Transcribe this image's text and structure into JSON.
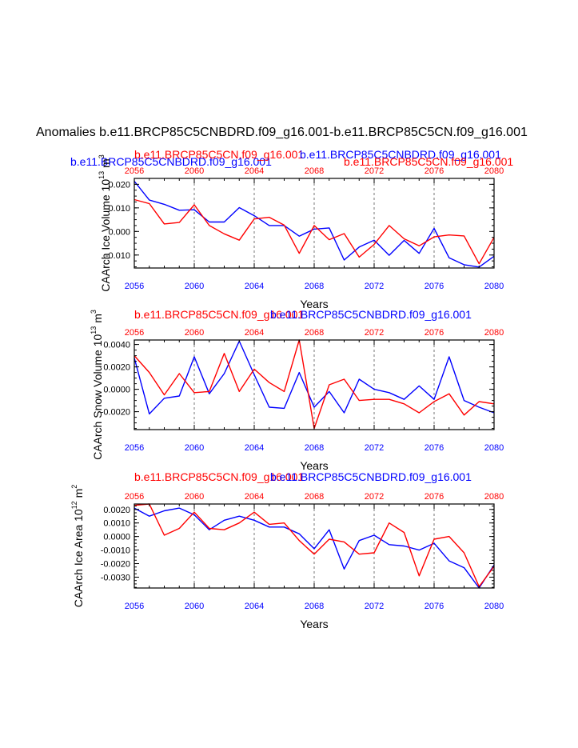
{
  "figure": {
    "title": "Anomalies b.e11.BRCP85C5CNBDRD.f09_g16.001-b.e11.BRCP85C5CN.f09_g16.001"
  },
  "colors": {
    "red": "#ff0000",
    "blue": "#0000ff",
    "black": "#000000"
  },
  "chart_data": [
    {
      "type": "line",
      "panel": "ice-volume",
      "series_labels": {
        "panel1_blue_left": "b.e11.BRCP85C5CNBDRD.f09_g16.001",
        "panel1_red_left": "b.e11.BRCP85C5CN.f09_g16.001",
        "panel1_blue_right": "b.e11.BRCP85C5CNBDRD.f09_g16.001",
        "panel1_red_right": "b.e11.BRCP85C5CN.f09_g16.001"
      },
      "ylabel": "CAArch Ice Volume 10^13 m^3",
      "ylabel_base": "CAArch Ice Volume 10",
      "ylabel_exp": "13",
      "ylabel_unit": "m",
      "ylabel_unit_exp": "3",
      "xlabel": "Years",
      "xlim": [
        2056,
        2080
      ],
      "ylim": [
        -0.0155,
        0.0225
      ],
      "yticks": [
        -0.01,
        0.0,
        0.01,
        0.02
      ],
      "ytick_labels": [
        "-0.010",
        "0.000",
        "0.010",
        "0.020"
      ],
      "xticks": [
        2056,
        2060,
        2064,
        2068,
        2072,
        2076,
        2080
      ],
      "xtick_labels": [
        "2056",
        "2060",
        "2064",
        "2068",
        "2072",
        "2076",
        "2080"
      ],
      "x": [
        2056,
        2057,
        2058,
        2059,
        2060,
        2061,
        2062,
        2063,
        2064,
        2065,
        2066,
        2067,
        2068,
        2069,
        2070,
        2071,
        2072,
        2073,
        2074,
        2075,
        2076,
        2077,
        2078,
        2079,
        2080
      ],
      "series": [
        {
          "name": "b.e11.BRCP85C5CNBDRD.f09_g16.001",
          "color": "#0000ff",
          "values": [
            0.0213,
            0.0133,
            0.0115,
            0.009,
            0.0092,
            0.004,
            0.004,
            0.0101,
            0.0067,
            0.0025,
            0.0025,
            -0.002,
            0.001,
            0.0015,
            -0.0121,
            -0.0066,
            -0.0037,
            -0.0101,
            -0.0038,
            -0.0093,
            0.0013,
            -0.0112,
            -0.0141,
            -0.0151,
            -0.0105
          ]
        },
        {
          "name": "b.e11.BRCP85C5CN.f09_g16.001",
          "color": "#ff0000",
          "values": [
            0.0135,
            0.0118,
            0.0032,
            0.0038,
            0.0113,
            0.0025,
            -0.001,
            -0.0037,
            0.0053,
            0.006,
            0.0027,
            -0.0093,
            0.0025,
            -0.0035,
            -0.0009,
            -0.0109,
            -0.0055,
            0.0025,
            -0.0031,
            -0.0061,
            -0.0023,
            -0.0015,
            -0.0019,
            -0.0137,
            -0.0025
          ]
        }
      ]
    },
    {
      "type": "line",
      "panel": "snow-volume",
      "series_labels": {
        "panel2_red": "b.e11.BRCP85C5CN.f09_g16.001",
        "panel2_blue": "b.e11.BRCP85C5CNBDRD.f09_g16.001"
      },
      "ylabel": "CAArch Snow Volume 10^13 m^3",
      "ylabel_base": "CAArch Snow Volume 10",
      "ylabel_exp": "13",
      "ylabel_unit": "m",
      "ylabel_unit_exp": "3",
      "xlabel": "Years",
      "xlim": [
        2056,
        2080
      ],
      "ylim": [
        -0.0036,
        0.0044
      ],
      "yticks": [
        -0.002,
        0.0,
        0.002,
        0.004
      ],
      "ytick_labels": [
        "-0.0020",
        "0.0000",
        "0.0020",
        "0.0040"
      ],
      "xticks": [
        2056,
        2060,
        2064,
        2068,
        2072,
        2076,
        2080
      ],
      "xtick_labels": [
        "2056",
        "2060",
        "2064",
        "2068",
        "2072",
        "2076",
        "2080"
      ],
      "x": [
        2056,
        2057,
        2058,
        2059,
        2060,
        2061,
        2062,
        2063,
        2064,
        2065,
        2066,
        2067,
        2068,
        2069,
        2070,
        2071,
        2072,
        2073,
        2074,
        2075,
        2076,
        2077,
        2078,
        2079,
        2080
      ],
      "series": [
        {
          "name": "b.e11.BRCP85C5CNBDRD.f09_g16.001",
          "color": "#0000ff",
          "values": [
            0.0028,
            -0.0022,
            -0.0008,
            -0.0006,
            0.0029,
            -0.0004,
            0.0014,
            0.0043,
            0.0013,
            -0.0016,
            -0.0017,
            0.0015,
            -0.0016,
            -0.0002,
            -0.0021,
            0.0009,
            0.0,
            -0.0003,
            -0.0009,
            0.0003,
            -0.0009,
            0.0029,
            -0.001,
            -0.0016,
            -0.0021
          ]
        },
        {
          "name": "b.e11.BRCP85C5CN.f09_g16.001",
          "color": "#ff0000",
          "values": [
            0.003,
            0.0015,
            -0.0005,
            0.0014,
            -0.0003,
            -0.0002,
            0.0032,
            -0.0002,
            0.0018,
            0.0006,
            -0.0002,
            0.0044,
            -0.0035,
            0.0004,
            0.0009,
            -0.001,
            -0.0009,
            -0.0009,
            -0.0013,
            -0.0021,
            -0.0011,
            -0.0004,
            -0.0023,
            -0.0011,
            -0.0013
          ]
        }
      ]
    },
    {
      "type": "line",
      "panel": "ice-area",
      "series_labels": {
        "panel3_red": "b.e11.BRCP85C5CN.f09_g16.001",
        "panel3_blue": "b.e11.BRCP85C5CNBDRD.f09_g16.001"
      },
      "ylabel": "CAArch Ice Area 10^12 m^2",
      "ylabel_base": "CAArch Ice Area 10",
      "ylabel_exp": "12",
      "ylabel_unit": "m",
      "ylabel_unit_exp": "2",
      "xlabel": "Years",
      "xlim": [
        2056,
        2080
      ],
      "ylim": [
        -0.0038,
        0.0024
      ],
      "yticks": [
        -0.003,
        -0.002,
        -0.001,
        0.0,
        0.001,
        0.002
      ],
      "ytick_labels": [
        "-0.0030",
        "-0.0020",
        "-0.0010",
        "0.0000",
        "0.0010",
        "0.0020"
      ],
      "xticks": [
        2056,
        2060,
        2064,
        2068,
        2072,
        2076,
        2080
      ],
      "xtick_labels": [
        "2056",
        "2060",
        "2064",
        "2068",
        "2072",
        "2076",
        "2080"
      ],
      "x": [
        2056,
        2057,
        2058,
        2059,
        2060,
        2061,
        2062,
        2063,
        2064,
        2065,
        2066,
        2067,
        2068,
        2069,
        2070,
        2071,
        2072,
        2073,
        2074,
        2075,
        2076,
        2077,
        2078,
        2079,
        2080
      ],
      "series": [
        {
          "name": "b.e11.BRCP85C5CNBDRD.f09_g16.001",
          "color": "#0000ff",
          "values": [
            0.0021,
            0.0015,
            0.0019,
            0.0021,
            0.0016,
            0.0005,
            0.0012,
            0.0015,
            0.0012,
            0.0007,
            0.0007,
            0.0002,
            -0.0009,
            0.0005,
            -0.0024,
            -0.0003,
            0.0001,
            -0.0006,
            -0.0007,
            -0.001,
            -0.0005,
            -0.0018,
            -0.0023,
            -0.0038,
            -0.0021
          ]
        },
        {
          "name": "b.e11.BRCP85C5CN.f09_g16.001",
          "color": "#ff0000",
          "values": [
            0.0023,
            0.0024,
            0.0001,
            0.0006,
            0.0018,
            0.0006,
            0.0005,
            0.001,
            0.0018,
            0.0009,
            0.001,
            -0.0003,
            -0.0013,
            -0.0002,
            -0.0004,
            -0.0013,
            -0.0012,
            0.001,
            0.0003,
            -0.0029,
            -0.0002,
            0.0,
            -0.0012,
            -0.0037,
            -0.0022
          ]
        }
      ]
    }
  ]
}
